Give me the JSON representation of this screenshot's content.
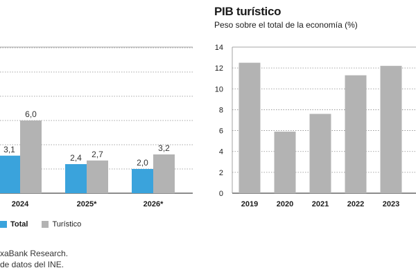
{
  "chart_data": [
    {
      "type": "bar",
      "categories": [
        "2024",
        "2025*",
        "2026*"
      ],
      "series": [
        {
          "name": "Total",
          "values": [
            3.1,
            2.4,
            2.0
          ],
          "labels": [
            "3,1",
            "2,4",
            "2,0"
          ],
          "color": "#3aa3dc"
        },
        {
          "name": "Turístico",
          "values": [
            6.0,
            2.7,
            3.2
          ],
          "labels": [
            "6,0",
            "2,7",
            "3,2"
          ],
          "color": "#b3b3b3"
        }
      ],
      "grid": true
    },
    {
      "type": "bar",
      "title": "PIB turístico",
      "subtitle": "Peso sobre el total de la economía (%)",
      "categories": [
        "2019",
        "2020",
        "2021",
        "2022",
        "2023"
      ],
      "values": [
        12.5,
        5.9,
        7.6,
        11.3,
        12.2
      ],
      "ylim": [
        0,
        14
      ],
      "yticks": [
        0,
        2,
        4,
        6,
        8,
        10,
        12,
        14
      ],
      "color": "#b3b3b3",
      "grid": true
    }
  ],
  "legend": {
    "total": "Total",
    "turistico": "Turístico"
  },
  "source": {
    "line1": "xaBank Research.",
    "line2": "de datos del INE."
  },
  "colors": {
    "total": "#3aa3dc",
    "turistico": "#b3b3b3",
    "grid": "#8a8a8a"
  }
}
